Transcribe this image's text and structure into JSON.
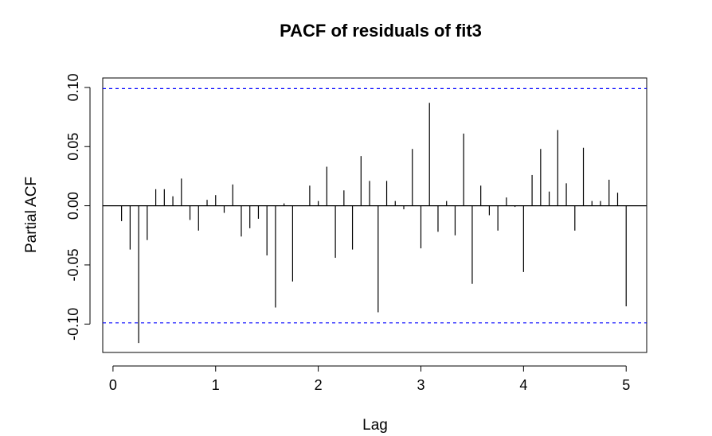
{
  "chart_data": {
    "type": "bar",
    "title": "PACF of residuals of fit3",
    "xlabel": "Lag",
    "ylabel": "Partial ACF",
    "xlim": [
      -0.1,
      5.2
    ],
    "ylim": [
      -0.124,
      0.108
    ],
    "x_ticks": [
      0,
      1,
      2,
      3,
      4,
      5
    ],
    "x_tick_labels": [
      "0",
      "1",
      "2",
      "3",
      "4",
      "5"
    ],
    "y_ticks": [
      -0.1,
      -0.05,
      0.0,
      0.05,
      0.1
    ],
    "y_tick_labels": [
      "-0.10",
      "-0.05",
      "0.00",
      "0.05",
      "0.10"
    ],
    "confidence_bounds": [
      0.099,
      -0.099
    ],
    "bound_color": "#0000ff",
    "line_color": "#000000",
    "grid": false,
    "x": [
      0.0833,
      0.1667,
      0.25,
      0.3333,
      0.4167,
      0.5,
      0.5833,
      0.6667,
      0.75,
      0.8333,
      0.9167,
      1.0,
      1.0833,
      1.1667,
      1.25,
      1.3333,
      1.4167,
      1.5,
      1.5833,
      1.6667,
      1.75,
      1.8333,
      1.9167,
      2.0,
      2.0833,
      2.1667,
      2.25,
      2.3333,
      2.4167,
      2.5,
      2.5833,
      2.6667,
      2.75,
      2.8333,
      2.9167,
      3.0,
      3.0833,
      3.1667,
      3.25,
      3.3333,
      3.4167,
      3.5,
      3.5833,
      3.6667,
      3.75,
      3.8333,
      3.9167,
      4.0,
      4.0833,
      4.1667,
      4.25,
      4.3333,
      4.4167,
      4.5,
      4.5833,
      4.6667,
      4.75,
      4.8333,
      4.9167,
      5.0
    ],
    "values": [
      -0.013,
      -0.037,
      -0.116,
      -0.029,
      0.014,
      0.014,
      0.008,
      0.023,
      -0.012,
      -0.021,
      0.005,
      0.009,
      -0.006,
      0.018,
      -0.026,
      -0.019,
      -0.011,
      -0.042,
      -0.086,
      0.002,
      -0.064,
      0.0,
      0.017,
      0.004,
      0.033,
      -0.044,
      0.013,
      -0.037,
      0.042,
      0.021,
      -0.09,
      0.021,
      0.004,
      -0.003,
      0.048,
      -0.036,
      0.087,
      -0.022,
      0.004,
      -0.025,
      0.061,
      -0.066,
      0.017,
      -0.008,
      -0.021,
      0.007,
      -0.001,
      -0.056,
      0.026,
      0.048,
      0.012,
      0.064,
      0.019,
      -0.021,
      0.049,
      0.004,
      0.004,
      0.022,
      0.011,
      -0.085
    ]
  }
}
